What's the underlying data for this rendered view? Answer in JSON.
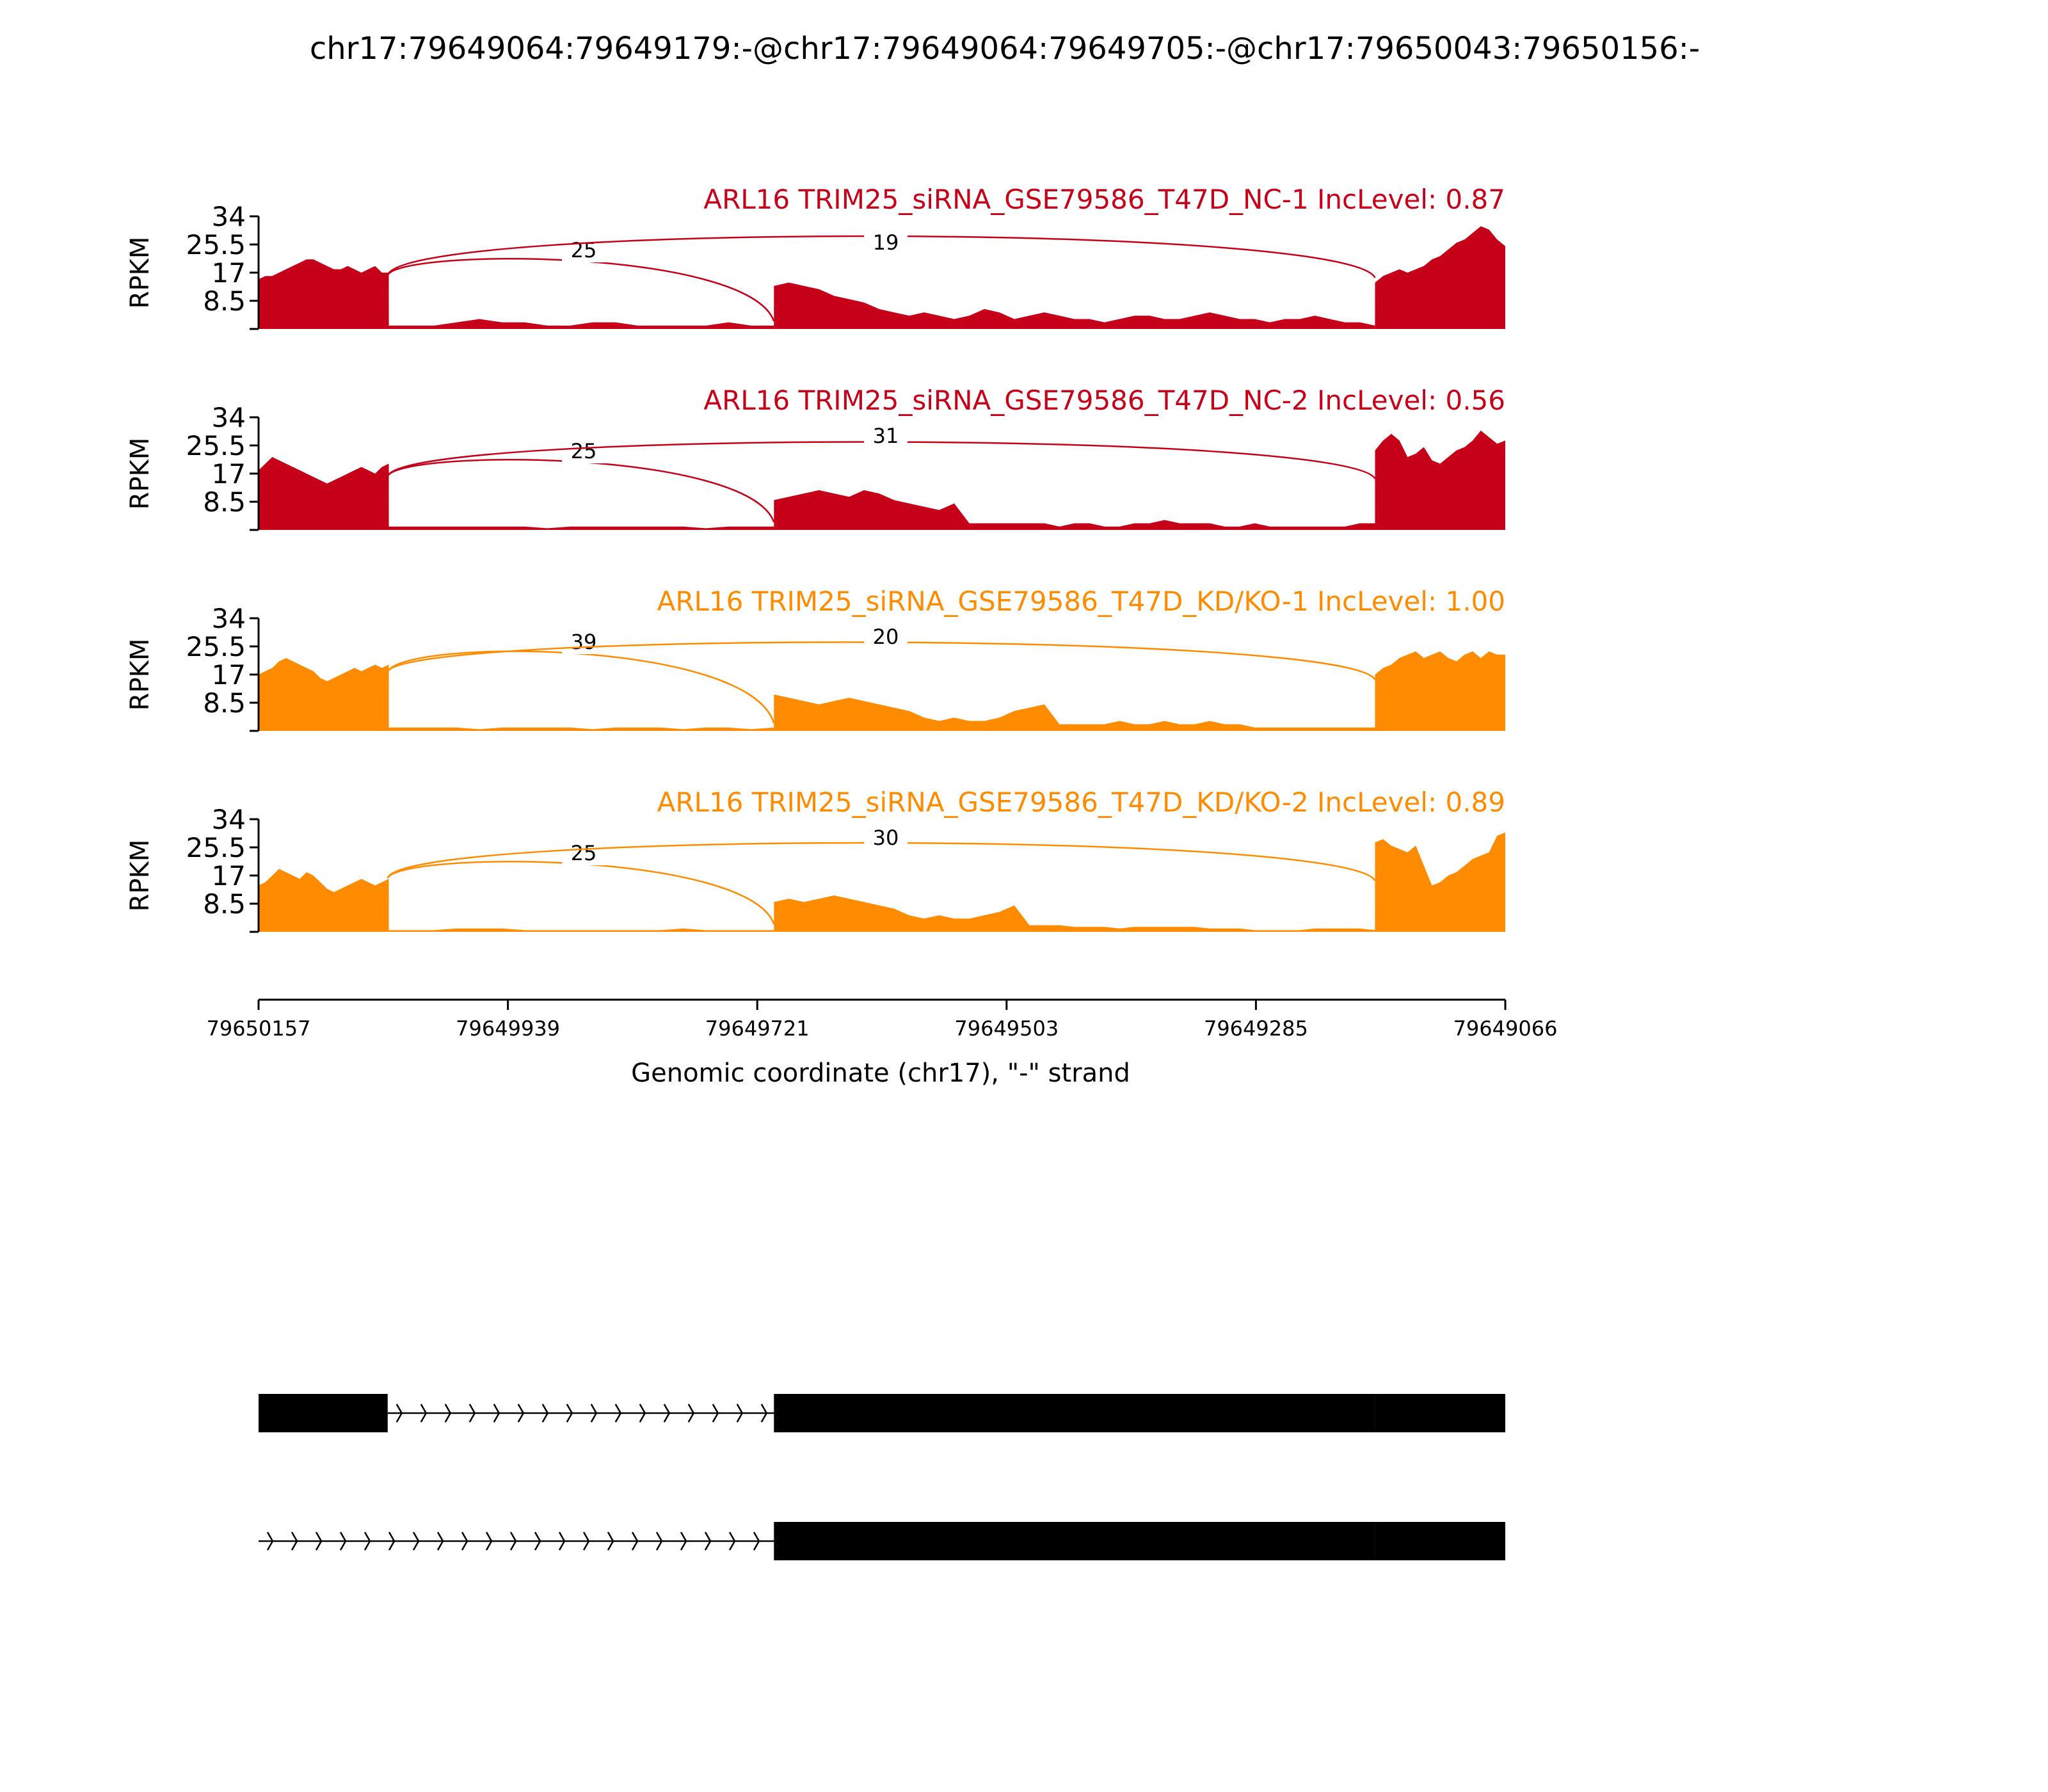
{
  "title": "chr17:79649064:79649179:-@chr17:79649064:79649705:-@chr17:79650043:79650156:-",
  "chart_data": {
    "type": "area",
    "chart_kind": "sashimi plot",
    "x_axis": {
      "label": "Genomic coordinate (chr17), \"-\" strand",
      "tick_labels": [
        "79650157",
        "79649939",
        "79649721",
        "79649503",
        "79649285",
        "79649066"
      ],
      "reversed": true
    },
    "y_axis": {
      "label": "RPKM",
      "ylim": [
        0,
        34
      ],
      "tick_labels": [
        "8.5",
        "17",
        "25.5",
        "34"
      ]
    },
    "colors": {
      "NC": "#c7001a",
      "KD": "#ff8c00",
      "exon": "#000000"
    },
    "tracks": [
      {
        "title": "ARL16 TRIM25_siRNA_GSE79586_T47D_NC-1 IncLevel: 0.87",
        "group": "NC",
        "junctions": [
          {
            "label": "25",
            "from": 79650044,
            "to": 79649706
          },
          {
            "label": "19",
            "from": 79650044,
            "to": 79649180
          }
        ],
        "coverage": [
          {
            "x0": 79650157,
            "x1": 79650043,
            "values": [
              15,
              16,
              16,
              17,
              18,
              19,
              20,
              21,
              21,
              20,
              19,
              18,
              18,
              19,
              18,
              17,
              18,
              19,
              17,
              17
            ]
          },
          {
            "x0": 79650043,
            "x1": 79649706,
            "values": [
              1,
              1,
              1,
              2,
              3,
              2,
              2,
              1,
              1,
              2,
              2,
              1,
              1,
              1,
              1,
              2,
              1,
              1
            ]
          },
          {
            "x0": 79649706,
            "x1": 79649180,
            "values": [
              13,
              14,
              13,
              12,
              10,
              9,
              8,
              6,
              5,
              4,
              5,
              4,
              3,
              4,
              6,
              5,
              3,
              4,
              5,
              4,
              3,
              3,
              2,
              3,
              4,
              4,
              3,
              3,
              4,
              5,
              4,
              3,
              3,
              2,
              3,
              3,
              4,
              3,
              2,
              2,
              1
            ]
          },
          {
            "x0": 79649180,
            "x1": 79649066,
            "values": [
              14,
              16,
              17,
              18,
              17,
              18,
              19,
              21,
              22,
              24,
              26,
              27,
              29,
              31,
              30,
              27,
              25
            ]
          }
        ]
      },
      {
        "title": "ARL16 TRIM25_siRNA_GSE79586_T47D_NC-2 IncLevel: 0.56",
        "group": "NC",
        "junctions": [
          {
            "label": "25",
            "from": 79650044,
            "to": 79649706
          },
          {
            "label": "31",
            "from": 79650044,
            "to": 79649180
          }
        ],
        "coverage": [
          {
            "x0": 79650157,
            "x1": 79650043,
            "values": [
              18,
              20,
              22,
              21,
              20,
              19,
              18,
              17,
              16,
              15,
              14,
              15,
              16,
              17,
              18,
              19,
              18,
              17,
              19,
              20
            ]
          },
          {
            "x0": 79650043,
            "x1": 79649706,
            "values": [
              1,
              1,
              1,
              1,
              1,
              1,
              1,
              0.5,
              1,
              1,
              1,
              1,
              1,
              1,
              0.5,
              1,
              1,
              1
            ]
          },
          {
            "x0": 79649706,
            "x1": 79649180,
            "values": [
              9,
              10,
              11,
              12,
              11,
              10,
              12,
              11,
              9,
              8,
              7,
              6,
              8,
              2,
              2,
              2,
              2,
              2,
              2,
              1,
              2,
              2,
              1,
              1,
              2,
              2,
              3,
              2,
              2,
              2,
              1,
              1,
              2,
              1,
              1,
              1,
              1,
              1,
              1,
              2,
              2
            ]
          },
          {
            "x0": 79649180,
            "x1": 79649066,
            "values": [
              24,
              27,
              29,
              27,
              22,
              23,
              25,
              21,
              20,
              22,
              24,
              25,
              27,
              30,
              28,
              26,
              27
            ]
          }
        ]
      },
      {
        "title": "ARL16 TRIM25_siRNA_GSE79586_T47D_KD/KO-1 IncLevel: 1.00",
        "group": "KD",
        "junctions": [
          {
            "label": "39",
            "from": 79650044,
            "to": 79649706
          },
          {
            "label": "20",
            "from": 79650044,
            "to": 79649180
          }
        ],
        "coverage": [
          {
            "x0": 79650157,
            "x1": 79650043,
            "values": [
              17,
              18,
              19,
              21,
              22,
              21,
              20,
              19,
              18,
              16,
              15,
              16,
              17,
              18,
              19,
              18,
              19,
              20,
              19,
              20
            ]
          },
          {
            "x0": 79650043,
            "x1": 79649706,
            "values": [
              1,
              1,
              1,
              1,
              0.5,
              1,
              1,
              1,
              1,
              0.5,
              1,
              1,
              1,
              0.5,
              1,
              1,
              0.5,
              1
            ]
          },
          {
            "x0": 79649706,
            "x1": 79649180,
            "values": [
              11,
              10,
              9,
              8,
              9,
              10,
              9,
              8,
              7,
              6,
              4,
              3,
              4,
              3,
              3,
              4,
              6,
              7,
              8,
              2,
              2,
              2,
              2,
              3,
              2,
              2,
              3,
              2,
              2,
              3,
              2,
              2,
              1,
              1,
              1,
              1,
              1,
              1,
              1,
              1,
              1
            ]
          },
          {
            "x0": 79649180,
            "x1": 79649066,
            "values": [
              17,
              19,
              20,
              22,
              23,
              24,
              22,
              23,
              24,
              22,
              21,
              23,
              24,
              22,
              24,
              23,
              23
            ]
          }
        ]
      },
      {
        "title": "ARL16 TRIM25_siRNA_GSE79586_T47D_KD/KO-2 IncLevel: 0.89",
        "group": "KD",
        "junctions": [
          {
            "label": "25",
            "from": 79650044,
            "to": 79649706
          },
          {
            "label": "30",
            "from": 79650044,
            "to": 79649180
          }
        ],
        "coverage": [
          {
            "x0": 79650157,
            "x1": 79650043,
            "values": [
              14,
              15,
              17,
              19,
              18,
              17,
              16,
              18,
              17,
              15,
              13,
              12,
              13,
              14,
              15,
              16,
              15,
              14,
              15,
              16
            ]
          },
          {
            "x0": 79650043,
            "x1": 79649706,
            "values": [
              0.5,
              0.5,
              0.5,
              1,
              1,
              1,
              0.5,
              0.5,
              0.5,
              0.5,
              0.5,
              0.5,
              0.5,
              1,
              0.5,
              0.5,
              0.5,
              0.5
            ]
          },
          {
            "x0": 79649706,
            "x1": 79649180,
            "values": [
              9,
              10,
              9,
              10,
              11,
              10,
              9,
              8,
              7,
              5,
              4,
              5,
              4,
              4,
              5,
              6,
              8,
              2,
              2,
              2,
              1.5,
              1.5,
              1.5,
              1,
              1.5,
              1.5,
              1.5,
              1.5,
              1.5,
              1,
              1,
              1,
              0.5,
              0.5,
              0.5,
              0.5,
              1,
              1,
              1,
              1,
              0.5
            ]
          },
          {
            "x0": 79649180,
            "x1": 79649066,
            "values": [
              27,
              28,
              26,
              25,
              24,
              26,
              20,
              14,
              15,
              17,
              18,
              20,
              22,
              23,
              24,
              29,
              30
            ]
          }
        ]
      }
    ],
    "transcripts": [
      {
        "exons": [
          [
            79650157,
            79650044
          ],
          [
            79649706,
            79649180
          ],
          [
            79649180,
            79649066
          ]
        ],
        "intron_strand_arrows": true
      },
      {
        "exons": [
          [
            79649706,
            79649180
          ],
          [
            79649180,
            79649066
          ]
        ],
        "intron_strand_arrows": true
      }
    ]
  }
}
